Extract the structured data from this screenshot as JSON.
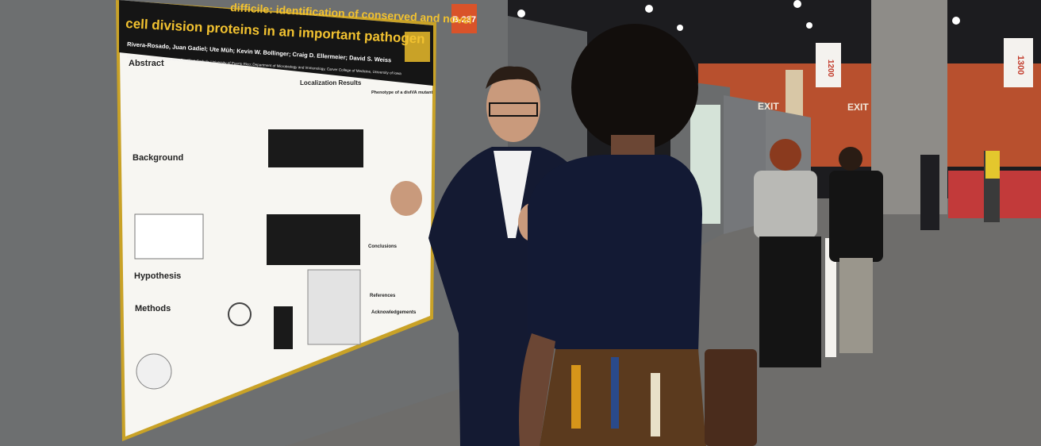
{
  "poster": {
    "title_line1": "difficile: identification of conserved and novel",
    "title_line2": "cell division proteins in an important pathogen",
    "authors": "Rivera-Rosado, Juan Gadiel; Ute Müh; Kevin W. Bollinger; Craig D. Ellermeier; David S. Weiss",
    "affiliation": "Department of Natural Sciences, Pontifical Catholic University of Puerto Rico; Department of Microbiology and Immunology, Carver College of Medicine, University of Iowa",
    "left_sections": [
      "Abstract",
      "Background",
      "Hypothesis",
      "Methods"
    ],
    "results_heading": "Localization Results",
    "right_sections": [
      "Phenotype of a divIVA mutant",
      "Conclusions",
      "References",
      "Acknowledgements"
    ]
  },
  "board_number": "B-237",
  "hall_signs": [
    "1200",
    "1300"
  ],
  "exit_signs": [
    "EXIT",
    "EXIT"
  ]
}
